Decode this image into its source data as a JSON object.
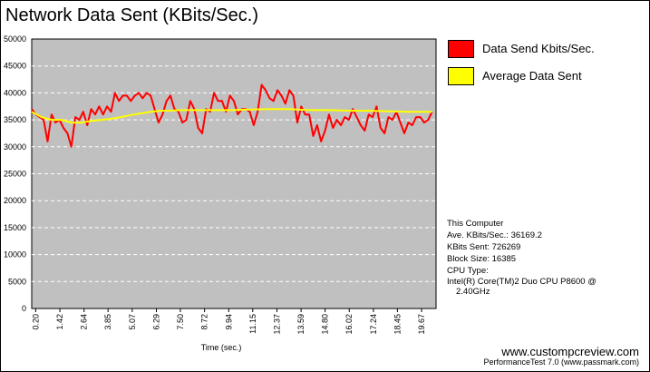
{
  "title": "Network Data Sent (KBits/Sec.)",
  "legend": [
    {
      "label": "Data Send Kbits/Sec.",
      "color": "#ff0000"
    },
    {
      "label": "Average Data Sent",
      "color": "#ffff00"
    }
  ],
  "info": {
    "heading": "This Computer",
    "ave": "Ave. KBits/Sec.: 36169.2",
    "sent": "KBits Sent: 726269",
    "block": "Block Size: 16385",
    "cpu_label": "CPU Type:",
    "cpu_line1": "Intel(R) Core(TM)2 Duo CPU P8600 @",
    "cpu_line2": "2.40GHz"
  },
  "footer": {
    "site": "www.custompcreview.com",
    "product": "PerformanceTest 7.0 (www.passmark.com)"
  },
  "chart_data": {
    "type": "line",
    "xlabel": "Time (sec.)",
    "ylabel": "",
    "ylim": [
      0,
      50000
    ],
    "yticks": [
      0,
      5000,
      10000,
      15000,
      20000,
      25000,
      30000,
      35000,
      40000,
      45000,
      50000
    ],
    "xlim": [
      0,
      20.4
    ],
    "xtick_labels": [
      "0.20",
      "1.42",
      "2.64",
      "3.85",
      "5.07",
      "6.29",
      "7.50",
      "8.72",
      "9.94",
      "11.15",
      "12.37",
      "13.59",
      "14.80",
      "16.02",
      "17.24",
      "18.45",
      "19.67"
    ],
    "xtick_values": [
      0.2,
      1.42,
      2.64,
      3.85,
      5.07,
      6.29,
      7.5,
      8.72,
      9.94,
      11.15,
      12.37,
      13.59,
      14.8,
      16.02,
      17.24,
      18.45,
      19.67
    ],
    "grid": true,
    "background": "#c0c0c0",
    "legend_position": "right",
    "series": [
      {
        "name": "Data Send Kbits/Sec.",
        "color": "#ff0000",
        "x": [
          0.0,
          0.2,
          0.4,
          0.6,
          0.8,
          1.0,
          1.2,
          1.4,
          1.6,
          1.8,
          2.0,
          2.2,
          2.4,
          2.6,
          2.8,
          3.0,
          3.2,
          3.4,
          3.6,
          3.8,
          4.0,
          4.2,
          4.4,
          4.6,
          4.8,
          5.0,
          5.2,
          5.4,
          5.6,
          5.8,
          6.0,
          6.2,
          6.4,
          6.6,
          6.8,
          7.0,
          7.2,
          7.4,
          7.6,
          7.8,
          8.0,
          8.2,
          8.4,
          8.6,
          8.8,
          9.0,
          9.2,
          9.4,
          9.6,
          9.8,
          10.0,
          10.2,
          10.4,
          10.6,
          10.8,
          11.0,
          11.2,
          11.4,
          11.6,
          11.8,
          12.0,
          12.2,
          12.4,
          12.6,
          12.8,
          13.0,
          13.2,
          13.4,
          13.6,
          13.8,
          14.0,
          14.2,
          14.4,
          14.6,
          14.8,
          15.0,
          15.2,
          15.4,
          15.6,
          15.8,
          16.0,
          16.2,
          16.4,
          16.6,
          16.8,
          17.0,
          17.2,
          17.4,
          17.6,
          17.8,
          18.0,
          18.2,
          18.4,
          18.6,
          18.8,
          19.0,
          19.2,
          19.4,
          19.6,
          19.8,
          20.0,
          20.2
        ],
        "y": [
          37000,
          36000,
          35500,
          35000,
          31000,
          36000,
          34500,
          35000,
          33500,
          32500,
          30000,
          35500,
          35000,
          36500,
          34000,
          37000,
          36000,
          37500,
          36000,
          37500,
          36500,
          40000,
          38500,
          39500,
          39500,
          38500,
          39500,
          40000,
          39000,
          40000,
          39500,
          37000,
          34500,
          36000,
          38500,
          39500,
          37000,
          36500,
          34500,
          35000,
          38500,
          37000,
          33500,
          32500,
          37000,
          36500,
          40000,
          38500,
          38500,
          36500,
          39500,
          38500,
          36000,
          37000,
          37000,
          36500,
          34000,
          36500,
          41500,
          40500,
          39000,
          38500,
          40500,
          39500,
          38000,
          40500,
          39500,
          34500,
          37500,
          36000,
          36000,
          32000,
          34000,
          31000,
          33000,
          36000,
          33500,
          35000,
          34000,
          35500,
          35000,
          37000,
          35500,
          34000,
          33000,
          36000,
          35500,
          37500,
          33500,
          32500,
          35500,
          35000,
          36500,
          34500,
          32500,
          34500,
          34000,
          35500,
          35500,
          34500,
          35000,
          36500
        ]
      },
      {
        "name": "Average Data Sent",
        "color": "#ffff00",
        "x": [
          0.0,
          0.5,
          1.0,
          1.5,
          2.0,
          2.5,
          3.0,
          3.5,
          4.0,
          4.5,
          5.0,
          5.5,
          6.0,
          6.5,
          7.0,
          7.5,
          8.0,
          9.0,
          10.0,
          11.0,
          12.0,
          13.0,
          14.0,
          15.0,
          16.0,
          17.0,
          18.0,
          19.0,
          20.2
        ],
        "y": [
          36500,
          35500,
          35000,
          35000,
          34500,
          34500,
          34800,
          35000,
          35200,
          35500,
          35900,
          36200,
          36500,
          36700,
          36700,
          36800,
          36800,
          36800,
          36800,
          36900,
          37000,
          37000,
          36800,
          36800,
          36700,
          36700,
          36600,
          36500,
          36500
        ]
      }
    ]
  }
}
